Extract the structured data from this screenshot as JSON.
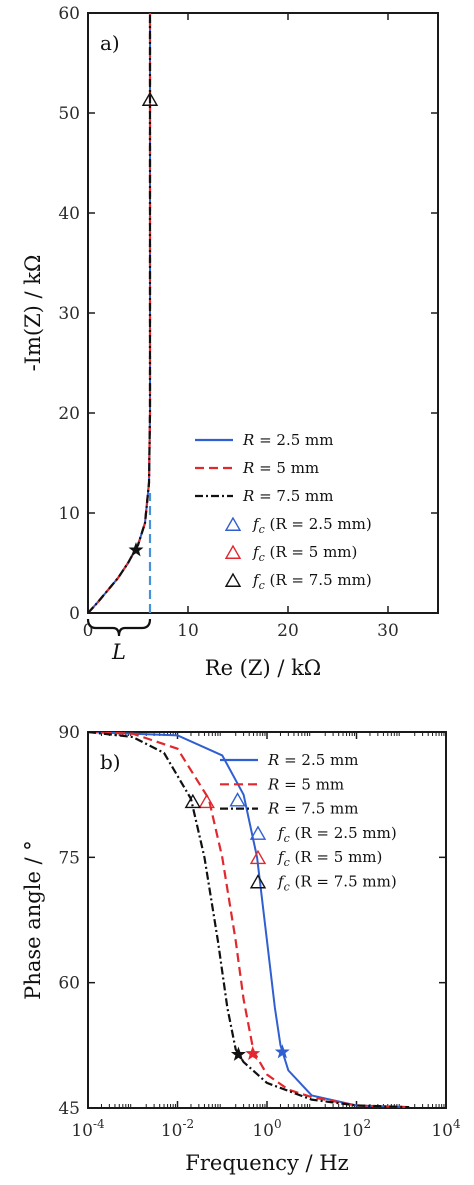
{
  "chart_data": [
    {
      "type": "line",
      "panel_label": "a)",
      "xlabel": "Re (Z) / kΩ",
      "ylabel": "-Im(Z) / kΩ",
      "xlim": [
        0,
        35
      ],
      "ylim": [
        0,
        60
      ],
      "xticks": [
        "0",
        "10",
        "20",
        "30"
      ],
      "yticks": [
        "0",
        "10",
        "20",
        "30",
        "40",
        "50",
        "60"
      ],
      "grid": false,
      "legend_position": "bottom-right",
      "annotation": "L",
      "series": [
        {
          "name": "R = 2.5 mm",
          "color": "#2f5fd0",
          "style": "solid",
          "x": [
            0,
            1,
            2,
            3,
            4,
            5,
            5.7,
            6.1,
            6.2,
            6.2,
            6.2
          ],
          "y": [
            0,
            1.1,
            2.3,
            3.5,
            5.0,
            6.8,
            9.0,
            13,
            20,
            40,
            60
          ]
        },
        {
          "name": "R = 5 mm",
          "color": "#e0282e",
          "style": "dashed",
          "x": [
            0,
            1,
            2,
            3,
            4,
            5,
            5.7,
            6.1,
            6.2,
            6.2,
            6.2
          ],
          "y": [
            0,
            1.1,
            2.3,
            3.5,
            5.0,
            6.8,
            9.0,
            13,
            20,
            40,
            60
          ]
        },
        {
          "name": "R = 7.5 mm",
          "color": "#111111",
          "style": "dashdot",
          "x": [
            0,
            1,
            2,
            3,
            4,
            5,
            5.7,
            6.1,
            6.2,
            6.2,
            6.2
          ],
          "y": [
            0,
            1.1,
            2.3,
            3.5,
            5.0,
            6.8,
            9.0,
            13,
            20,
            40,
            60
          ]
        },
        {
          "name": "",
          "color": "#4a90d9",
          "style": "dashed",
          "x": [
            6.2,
            6.2
          ],
          "y": [
            0,
            12
          ]
        }
      ],
      "markers": [
        {
          "name": "f_c (R = 2.5 mm)",
          "shape": "triangle",
          "color": "#2f5fd0"
        },
        {
          "name": "f_c (R = 5 mm)",
          "shape": "triangle",
          "color": "#e0282e"
        },
        {
          "name": "f_c (R = 7.5 mm)",
          "shape": "triangle",
          "color": "#111111",
          "x": 6.2,
          "y": 51.3
        },
        {
          "shape": "star",
          "color": "#111111",
          "x": 4.8,
          "y": 6.3
        }
      ],
      "legend": [
        {
          "kind": "line",
          "style": "solid",
          "color": "#2f5fd0",
          "var": "R",
          "text": " = 2.5 mm"
        },
        {
          "kind": "line",
          "style": "dashed",
          "color": "#e0282e",
          "var": "R",
          "text": " = 5 mm"
        },
        {
          "kind": "line",
          "style": "dashdot",
          "color": "#111111",
          "var": "R",
          "text": " = 7.5 mm"
        },
        {
          "kind": "triangle",
          "color": "#2f5fd0",
          "var": "f",
          "sub": "c",
          "text": " (R = 2.5 mm)"
        },
        {
          "kind": "triangle",
          "color": "#e0282e",
          "var": "f",
          "sub": "c",
          "text": " (R = 5 mm)"
        },
        {
          "kind": "triangle",
          "color": "#111111",
          "var": "f",
          "sub": "c",
          "text": " (R = 7.5 mm)"
        }
      ]
    },
    {
      "type": "line",
      "panel_label": "b)",
      "xlabel": "Frequency / Hz",
      "ylabel": "Phase angle / °",
      "xscale": "log",
      "xlim": [
        0.0001,
        10000
      ],
      "ylim": [
        45,
        90
      ],
      "xticks": [
        {
          "base": "10",
          "exp": "-4"
        },
        {
          "base": "10",
          "exp": "-2"
        },
        {
          "base": "10",
          "exp": "0"
        },
        {
          "base": "10",
          "exp": "2"
        },
        {
          "base": "10",
          "exp": "4"
        }
      ],
      "yticks": [
        "45",
        "60",
        "75",
        "90"
      ],
      "grid": false,
      "legend_position": "top-right",
      "series": [
        {
          "name": "R = 2.5 mm",
          "color": "#2f5fd0",
          "style": "solid",
          "x": [
            0.0001,
            0.01,
            0.1,
            0.3,
            0.6,
            1,
            1.5,
            2,
            3,
            10,
            100,
            1500
          ],
          "y": [
            90,
            89.6,
            87.2,
            82.5,
            75,
            65,
            57,
            52.5,
            49.5,
            46.5,
            45.3,
            45.1
          ]
        },
        {
          "name": "R = 5 mm",
          "color": "#e0282e",
          "style": "dashed",
          "x": [
            0.0001,
            0.001,
            0.01,
            0.05,
            0.1,
            0.2,
            0.3,
            0.5,
            1,
            3,
            10,
            100,
            1500
          ],
          "y": [
            90,
            89.8,
            88,
            82,
            75,
            65,
            58,
            51.8,
            49,
            47.2,
            46.3,
            45.3,
            45.1
          ]
        },
        {
          "name": "R = 7.5 mm",
          "color": "#111111",
          "style": "dashdot",
          "x": [
            0.0001,
            0.001,
            0.005,
            0.02,
            0.04,
            0.08,
            0.13,
            0.2,
            0.3,
            1,
            10,
            100,
            1500
          ],
          "y": [
            90,
            89.4,
            87.5,
            82,
            75,
            65,
            57,
            52,
            50.5,
            48,
            46,
            45.3,
            45.1
          ]
        }
      ],
      "markers": [
        {
          "shape": "triangle",
          "color": "#2f5fd0",
          "x": 0.22,
          "y": 81.8
        },
        {
          "shape": "triangle",
          "color": "#e0282e",
          "x": 0.045,
          "y": 81.6
        },
        {
          "shape": "triangle",
          "color": "#111111",
          "x": 0.022,
          "y": 81.6
        },
        {
          "shape": "star",
          "color": "#2f5fd0",
          "x": 2.2,
          "y": 51.7
        },
        {
          "shape": "star",
          "color": "#e0282e",
          "x": 0.48,
          "y": 51.5
        },
        {
          "shape": "star",
          "color": "#111111",
          "x": 0.23,
          "y": 51.4
        }
      ],
      "legend": [
        {
          "kind": "line",
          "style": "solid",
          "color": "#2f5fd0",
          "var": "R",
          "text": " = 2.5 mm"
        },
        {
          "kind": "line",
          "style": "dashed",
          "color": "#e0282e",
          "var": "R",
          "text": " = 5 mm"
        },
        {
          "kind": "line",
          "style": "dashdot",
          "color": "#111111",
          "var": "R",
          "text": " = 7.5 mm"
        },
        {
          "kind": "triangle",
          "color": "#2f5fd0",
          "var": "f",
          "sub": "c",
          "text": " (R = 2.5 mm)"
        },
        {
          "kind": "triangle",
          "color": "#e0282e",
          "var": "f",
          "sub": "c",
          "text": " (R = 5 mm)"
        },
        {
          "kind": "triangle",
          "color": "#111111",
          "var": "f",
          "sub": "c",
          "text": " (R = 7.5 mm)"
        }
      ]
    }
  ]
}
